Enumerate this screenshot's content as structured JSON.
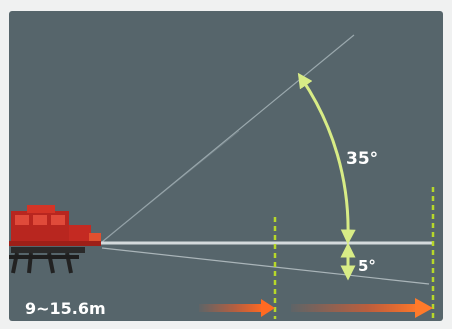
{
  "diagram": {
    "angle_upper": "35°",
    "angle_lower": "5°",
    "range_label": "9~15.6m",
    "colors": {
      "background": "#56656b",
      "angle_arc": "#d8ec86",
      "marker_dashed": "#b7d82a",
      "machine": "#c42a22",
      "arrow": "#ff5a1f"
    }
  }
}
